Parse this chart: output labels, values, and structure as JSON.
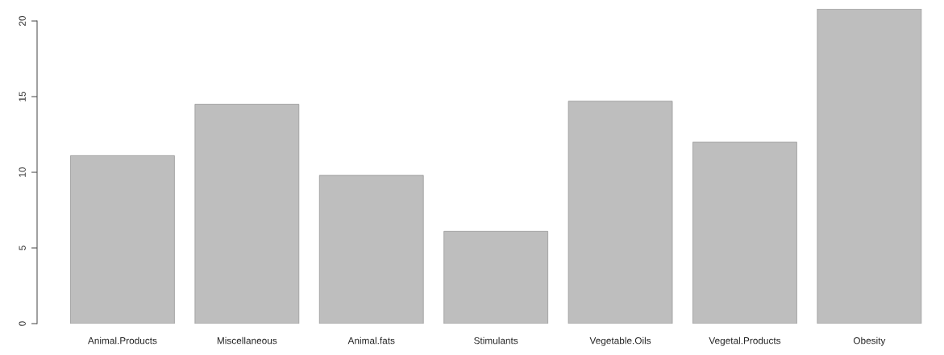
{
  "chart_data": {
    "type": "bar",
    "categories": [
      "Animal.Products",
      "Miscellaneous",
      "Animal.fats",
      "Stimulants",
      "Vegetable.Oils",
      "Vegetal.Products",
      "Obesity"
    ],
    "values": [
      11.1,
      14.5,
      9.8,
      6.1,
      14.7,
      12.0,
      20.8
    ],
    "color": "#bebebe",
    "ylim": [
      0,
      20.8
    ],
    "yticks": [
      0,
      5,
      10,
      15,
      20
    ],
    "grid": false,
    "legend": false
  }
}
